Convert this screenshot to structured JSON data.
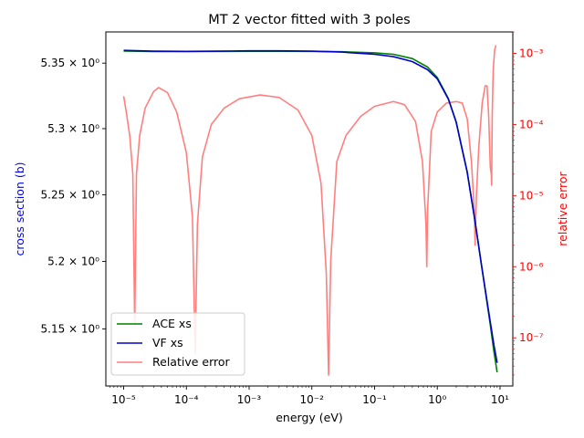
{
  "chart_data": {
    "type": "line",
    "title": "MT 2 vector fitted with 3 poles",
    "xlabel": "energy (eV)",
    "ylabel_left": "cross section (b)",
    "ylabel_right": "relative error",
    "x_scale": "log",
    "y_left_scale": "log",
    "y_right_scale": "log",
    "xlim": [
      5.2e-06,
      16
    ],
    "ylim_left": [
      5.108,
      5.374
    ],
    "ylim_right": [
      2.1e-08,
      0.002
    ],
    "x_ticks": [
      {
        "value": 1e-05,
        "label": "10⁻⁵"
      },
      {
        "value": 0.0001,
        "label": "10⁻⁴"
      },
      {
        "value": 0.001,
        "label": "10⁻³"
      },
      {
        "value": 0.01,
        "label": "10⁻²"
      },
      {
        "value": 0.1,
        "label": "10⁻¹"
      },
      {
        "value": 1,
        "label": "10⁰"
      },
      {
        "value": 10,
        "label": "10¹"
      }
    ],
    "y_left_ticks": [
      {
        "value": 5.15,
        "label": "5.15 × 10⁰"
      },
      {
        "value": 5.2,
        "label": "5.2 × 10⁰"
      },
      {
        "value": 5.25,
        "label": "5.25 × 10⁰"
      },
      {
        "value": 5.3,
        "label": "5.3 × 10⁰"
      },
      {
        "value": 5.35,
        "label": "5.35 × 10⁰"
      }
    ],
    "y_right_ticks": [
      {
        "value": 1e-07,
        "label": "10⁻⁷"
      },
      {
        "value": 1e-06,
        "label": "10⁻⁶"
      },
      {
        "value": 1e-05,
        "label": "10⁻⁵"
      },
      {
        "value": 0.0001,
        "label": "10⁻⁴"
      },
      {
        "value": 0.001,
        "label": "10⁻³"
      }
    ],
    "legend_placement": "lower-left",
    "series": [
      {
        "name": "ACE xs",
        "axis": "left",
        "color": "#008000",
        "x": [
          1e-05,
          3e-05,
          0.0001,
          0.0003,
          0.001,
          0.003,
          0.01,
          0.03,
          0.1,
          0.2,
          0.4,
          0.7,
          1.0,
          1.5,
          2.0,
          3.0,
          4.0,
          5.0,
          6.0,
          7.0,
          8.0,
          9.0
        ],
        "values": [
          5.3593,
          5.3589,
          5.3589,
          5.359,
          5.3591,
          5.3591,
          5.359,
          5.3588,
          5.3579,
          5.3568,
          5.3535,
          5.347,
          5.339,
          5.323,
          5.305,
          5.267,
          5.23,
          5.199,
          5.174,
          5.153,
          5.133,
          5.118
        ]
      },
      {
        "name": "VF xs",
        "axis": "left",
        "color": "#0000cd",
        "x": [
          1e-05,
          3e-05,
          0.0001,
          0.0003,
          0.001,
          0.003,
          0.01,
          0.03,
          0.1,
          0.2,
          0.4,
          0.7,
          1.0,
          1.5,
          2.0,
          3.0,
          4.0,
          5.0,
          6.0,
          7.0,
          8.0,
          9.0
        ],
        "values": [
          5.3598,
          5.3592,
          5.359,
          5.3592,
          5.3595,
          5.3595,
          5.3592,
          5.3585,
          5.3568,
          5.355,
          5.3512,
          5.345,
          5.338,
          5.3225,
          5.305,
          5.267,
          5.23,
          5.199,
          5.175,
          5.155,
          5.138,
          5.125
        ]
      },
      {
        "name": "Relative error",
        "axis": "right",
        "color": "#ff7f7f",
        "x": [
          1e-05,
          1.1e-05,
          1.25e-05,
          1.4e-05,
          1.5e-05,
          1.6e-05,
          1.8e-05,
          2.2e-05,
          3e-05,
          3.6e-05,
          5e-05,
          7e-05,
          0.0001,
          0.000125,
          0.000138,
          0.00015,
          0.00018,
          0.00025,
          0.0004,
          0.0007,
          0.0015,
          0.003,
          0.006,
          0.01,
          0.014,
          0.017,
          0.0185,
          0.02,
          0.025,
          0.035,
          0.06,
          0.1,
          0.2,
          0.3,
          0.45,
          0.58,
          0.66,
          0.68,
          0.7,
          0.8,
          1.0,
          1.4,
          2.0,
          2.5,
          3.0,
          3.5,
          3.9,
          4.0,
          4.2,
          4.6,
          5.2,
          5.8,
          6.2,
          6.6,
          7.0,
          7.25,
          7.35,
          7.5,
          7.8,
          8.2,
          8.6
        ],
        "values": [
          0.00025,
          0.00015,
          7e-05,
          2e-05,
          1.5e-07,
          2e-05,
          7e-05,
          0.00017,
          0.00029,
          0.00033,
          0.00028,
          0.00015,
          4e-05,
          5e-06,
          6e-08,
          4e-06,
          3.5e-05,
          0.0001,
          0.00017,
          0.00023,
          0.00026,
          0.00024,
          0.00016,
          7e-05,
          1.5e-05,
          8e-07,
          3e-08,
          1.2e-06,
          3e-05,
          7e-05,
          0.00013,
          0.00018,
          0.00021,
          0.00019,
          0.00011,
          3e-05,
          4e-06,
          1e-06,
          6e-06,
          8e-05,
          0.00015,
          0.0002,
          0.00021,
          0.0002,
          0.00012,
          3e-05,
          6e-06,
          2e-06,
          1e-05,
          5e-05,
          0.0002,
          0.00035,
          0.00035,
          0.00013,
          2.5e-05,
          2e-05,
          1.4e-05,
          0.00013,
          0.0006,
          0.0011,
          0.0013
        ]
      }
    ]
  }
}
